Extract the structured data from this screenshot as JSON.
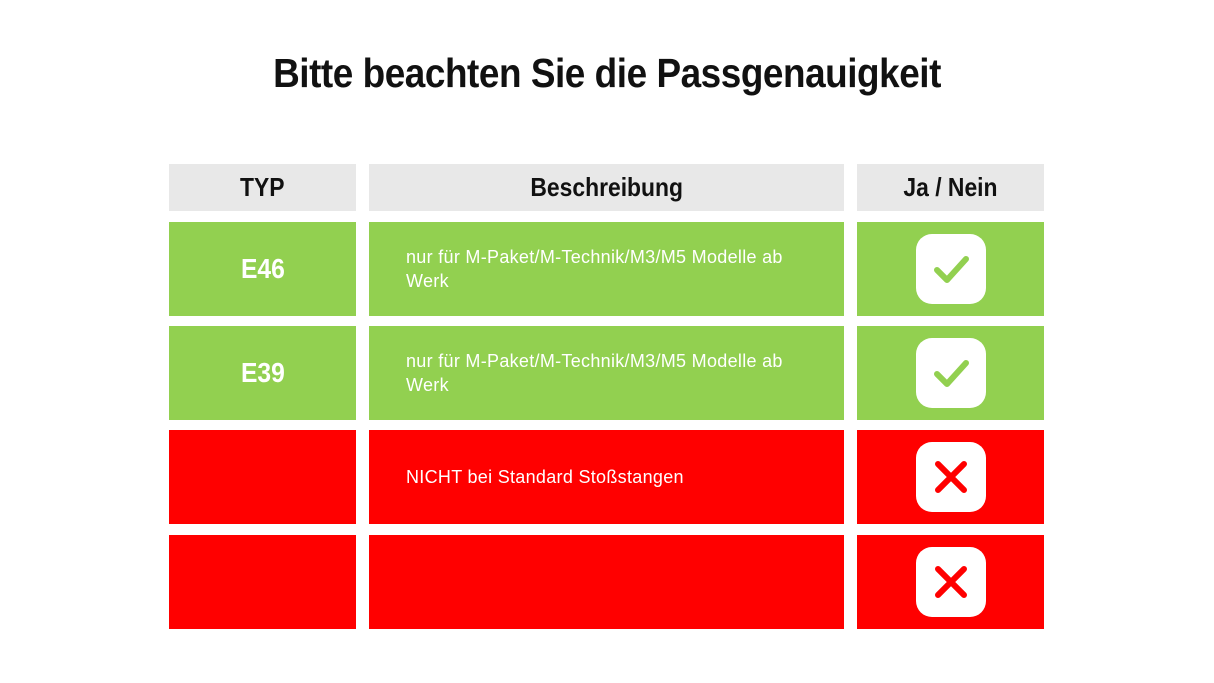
{
  "title": "Bitte beachten Sie die Passgenauigkeit",
  "colors": {
    "green": "#92d050",
    "red": "#ff0000",
    "header": "#e8e8e8"
  },
  "table": {
    "headers": [
      "TYP",
      "Beschreibung",
      "Ja / Nein"
    ],
    "rows": [
      {
        "typ": "E46",
        "description": "nur für M-Paket/M-Technik/M3/M5  Modelle ab Werk",
        "status": "yes",
        "icon": "check-icon"
      },
      {
        "typ": "E39",
        "description": "nur für M-Paket/M-Technik/M3/M5  Modelle ab Werk",
        "status": "yes",
        "icon": "check-icon"
      },
      {
        "typ": "",
        "description": "NICHT bei Standard Stoßstangen",
        "status": "no",
        "icon": "x-icon"
      },
      {
        "typ": "",
        "description": "",
        "status": "no",
        "icon": "x-icon"
      }
    ]
  }
}
